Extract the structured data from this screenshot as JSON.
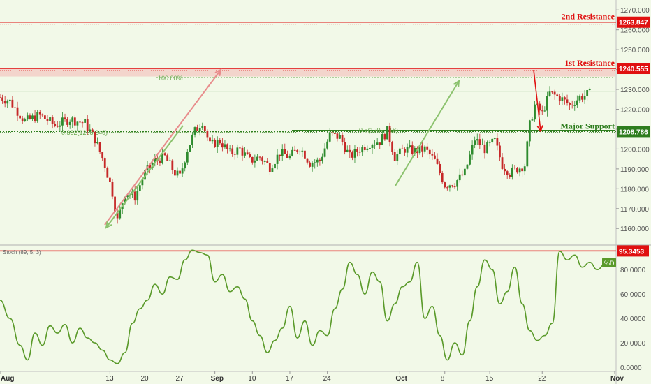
{
  "colors": {
    "background": "#f2f9e8",
    "candle_up": "#2e8b2e",
    "candle_down": "#c62828",
    "resistance": "#e01010",
    "support": "#2e7d1e",
    "fib": "#6aa84f",
    "arrow_pink": "#e88c8c",
    "arrow_green": "#8cc26e",
    "stoch": "#5a9a2a",
    "axis_text": "#555555"
  },
  "chart_data": [
    {
      "type": "candlestick",
      "pane": "price",
      "ylim": [
        1152,
        1275
      ],
      "y_ticks": [
        "1160.000",
        "1170.000",
        "1180.000",
        "1190.000",
        "1200.000",
        "1210.000",
        "1220.000",
        "1230.000",
        "1240.000",
        "1250.000",
        "1260.000",
        "1270.000"
      ],
      "x_ticks": [
        "Aug",
        "13",
        "20",
        "27",
        "Sep",
        "10",
        "17",
        "24",
        "Oct",
        "8",
        "15",
        "22",
        "Nov"
      ],
      "close_path": [
        [
          0,
          1226
        ],
        [
          4,
          1224
        ],
        [
          10,
          1214
        ],
        [
          16,
          1217
        ],
        [
          22,
          1212
        ],
        [
          28,
          1215
        ],
        [
          34,
          1213
        ],
        [
          38,
          1205
        ],
        [
          42,
          1192
        ],
        [
          45,
          1178
        ],
        [
          47,
          1164
        ],
        [
          50,
          1178
        ],
        [
          54,
          1176
        ],
        [
          58,
          1188
        ],
        [
          62,
          1194
        ],
        [
          66,
          1196
        ],
        [
          70,
          1188
        ],
        [
          72,
          1186
        ],
        [
          75,
          1200
        ],
        [
          78,
          1209
        ],
        [
          81,
          1214
        ],
        [
          84,
          1202
        ],
        [
          88,
          1204
        ],
        [
          92,
          1198
        ],
        [
          96,
          1200
        ],
        [
          100,
          1194
        ],
        [
          104,
          1196
        ],
        [
          108,
          1191
        ],
        [
          112,
          1198
        ],
        [
          116,
          1196
        ],
        [
          120,
          1201
        ],
        [
          124,
          1193
        ],
        [
          128,
          1194
        ],
        [
          132,
          1207
        ],
        [
          136,
          1206
        ],
        [
          140,
          1196
        ],
        [
          144,
          1200
        ],
        [
          148,
          1203
        ],
        [
          152,
          1204
        ],
        [
          155,
          1209
        ],
        [
          158,
          1196
        ],
        [
          162,
          1200
        ],
        [
          166,
          1199
        ],
        [
          170,
          1200
        ],
        [
          174,
          1194
        ],
        [
          178,
          1182
        ],
        [
          182,
          1183
        ],
        [
          186,
          1188
        ],
        [
          190,
          1205
        ],
        [
          194,
          1200
        ],
        [
          198,
          1204
        ],
        [
          201,
          1192
        ],
        [
          204,
          1188
        ],
        [
          207,
          1190
        ],
        [
          210,
          1192
        ],
        [
          212,
          1212
        ],
        [
          214,
          1222
        ],
        [
          217,
          1218
        ],
        [
          220,
          1228
        ],
        [
          224,
          1226
        ],
        [
          228,
          1222
        ],
        [
          232,
          1226
        ],
        [
          236,
          1228
        ]
      ],
      "levels": [
        {
          "name": "2nd Resistance",
          "value": 1263.847,
          "label": "1263.847"
        },
        {
          "name": "1st Resistance",
          "value": 1240.555,
          "label": "1240.555"
        },
        {
          "name": "Major Support",
          "value": 1208.786,
          "label": "1208.786"
        }
      ],
      "fib_labels": [
        "100.00%",
        "0.382(1208.240)",
        "0.5(1209.418)"
      ]
    },
    {
      "type": "line",
      "pane": "oscillator",
      "name": "Stoch (89, 5, 3)",
      "ylim": [
        0,
        95
      ],
      "y_ticks": [
        "0.0000",
        "20.0000",
        "40.0000",
        "60.0000",
        "80.0000"
      ],
      "level": {
        "value": 95.3453,
        "label": "95.3453"
      },
      "badge": "%D",
      "points": [
        [
          0,
          55
        ],
        [
          4,
          40
        ],
        [
          8,
          18
        ],
        [
          11,
          6
        ],
        [
          14,
          28
        ],
        [
          17,
          18
        ],
        [
          20,
          34
        ],
        [
          23,
          28
        ],
        [
          26,
          35
        ],
        [
          29,
          20
        ],
        [
          32,
          32
        ],
        [
          35,
          24
        ],
        [
          38,
          20
        ],
        [
          41,
          14
        ],
        [
          44,
          6
        ],
        [
          47,
          3
        ],
        [
          50,
          12
        ],
        [
          53,
          36
        ],
        [
          56,
          48
        ],
        [
          59,
          55
        ],
        [
          62,
          68
        ],
        [
          65,
          60
        ],
        [
          68,
          74
        ],
        [
          71,
          72
        ],
        [
          74,
          88
        ],
        [
          77,
          96
        ],
        [
          80,
          94
        ],
        [
          83,
          92
        ],
        [
          86,
          70
        ],
        [
          89,
          76
        ],
        [
          92,
          62
        ],
        [
          95,
          66
        ],
        [
          98,
          56
        ],
        [
          101,
          38
        ],
        [
          104,
          26
        ],
        [
          107,
          12
        ],
        [
          110,
          22
        ],
        [
          113,
          32
        ],
        [
          116,
          50
        ],
        [
          119,
          24
        ],
        [
          122,
          38
        ],
        [
          125,
          18
        ],
        [
          128,
          30
        ],
        [
          131,
          26
        ],
        [
          134,
          48
        ],
        [
          137,
          64
        ],
        [
          140,
          86
        ],
        [
          143,
          76
        ],
        [
          146,
          60
        ],
        [
          149,
          78
        ],
        [
          152,
          70
        ],
        [
          155,
          38
        ],
        [
          158,
          52
        ],
        [
          161,
          66
        ],
        [
          164,
          70
        ],
        [
          167,
          86
        ],
        [
          170,
          40
        ],
        [
          173,
          50
        ],
        [
          176,
          26
        ],
        [
          179,
          6
        ],
        [
          182,
          20
        ],
        [
          185,
          10
        ],
        [
          188,
          38
        ],
        [
          191,
          66
        ],
        [
          194,
          88
        ],
        [
          197,
          80
        ],
        [
          200,
          52
        ],
        [
          203,
          62
        ],
        [
          206,
          82
        ],
        [
          209,
          52
        ],
        [
          212,
          30
        ],
        [
          215,
          22
        ],
        [
          218,
          26
        ],
        [
          221,
          36
        ],
        [
          224,
          95
        ],
        [
          227,
          88
        ],
        [
          230,
          92
        ],
        [
          233,
          82
        ],
        [
          236,
          86
        ],
        [
          239,
          80
        ],
        [
          242,
          84
        ]
      ]
    }
  ]
}
